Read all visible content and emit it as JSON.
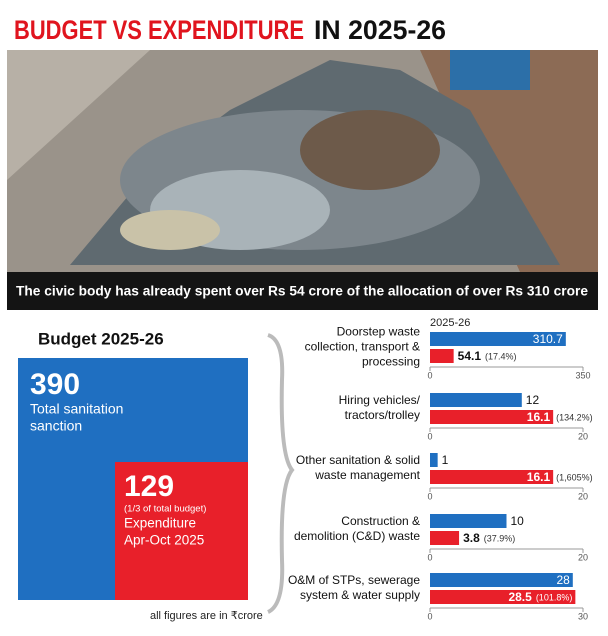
{
  "header": {
    "title_highlight": "BUDGET VS EXPENDITURE",
    "title_rest": "IN 2025-26"
  },
  "caption": "The civic body has already spent over Rs 54 crore of the allocation of over Rs 310 crore",
  "budget_panel": {
    "title": "Budget 2025-26",
    "total": {
      "value": 390,
      "label": "Total sanitation",
      "label2": "sanction"
    },
    "expenditure": {
      "value": 129,
      "note": "(1/3 of total budget)",
      "label": "Expenditure",
      "label2": "Apr-Oct 2025"
    },
    "footnote": "all figures are in ₹crore"
  },
  "chart_data": [
    {
      "type": "hbar",
      "subtitle": "2025-26",
      "categories": [
        "Doorstep waste\ncollection, transport &\nprocessing"
      ],
      "series": [
        {
          "color": "#1f6fc1",
          "values": [
            310.7
          ]
        },
        {
          "color": "#e8202a",
          "values": [
            54.1
          ],
          "shares": [
            {
              "value": 17.4,
              "label": "(17.4%)"
            }
          ]
        }
      ],
      "xlim": [
        0,
        350
      ],
      "xticks": [
        0,
        350
      ]
    },
    {
      "type": "hbar",
      "categories": [
        "Hiring vehicles/\ntractors/trolley"
      ],
      "series": [
        {
          "color": "#1f6fc1",
          "values": [
            12
          ]
        },
        {
          "color": "#e8202a",
          "values": [
            16.1
          ],
          "shares": [
            {
              "value": 134.2,
              "label": "(134.2%)"
            }
          ]
        }
      ],
      "xlim": [
        0,
        20
      ],
      "xticks": [
        0,
        20
      ]
    },
    {
      "type": "hbar",
      "categories": [
        "Other sanitation & solid\nwaste management"
      ],
      "series": [
        {
          "color": "#1f6fc1",
          "values": [
            1
          ]
        },
        {
          "color": "#e8202a",
          "values": [
            16.1
          ],
          "shares": [
            {
              "value": 1605,
              "label": "(1,605%)"
            }
          ]
        }
      ],
      "xlim": [
        0,
        20
      ],
      "xticks": [
        0,
        20
      ]
    },
    {
      "type": "hbar",
      "categories": [
        "Construction &\ndemolition (C&D) waste"
      ],
      "series": [
        {
          "color": "#1f6fc1",
          "values": [
            10
          ]
        },
        {
          "color": "#e8202a",
          "values": [
            3.8
          ],
          "shares": [
            {
              "value": 37.9,
              "label": "(37.9%)"
            }
          ]
        }
      ],
      "xlim": [
        0,
        20
      ],
      "xticks": [
        0,
        20
      ]
    },
    {
      "type": "hbar",
      "categories": [
        "O&M of STPs, sewerage\nsystem & water supply"
      ],
      "series": [
        {
          "color": "#1f6fc1",
          "values": [
            28
          ]
        },
        {
          "color": "#e8202a",
          "values": [
            28.5
          ],
          "shares": [
            {
              "value": 101.8,
              "label": "(101.8%)"
            }
          ]
        }
      ],
      "xlim": [
        0,
        30
      ],
      "xticks": [
        0,
        30
      ]
    }
  ]
}
